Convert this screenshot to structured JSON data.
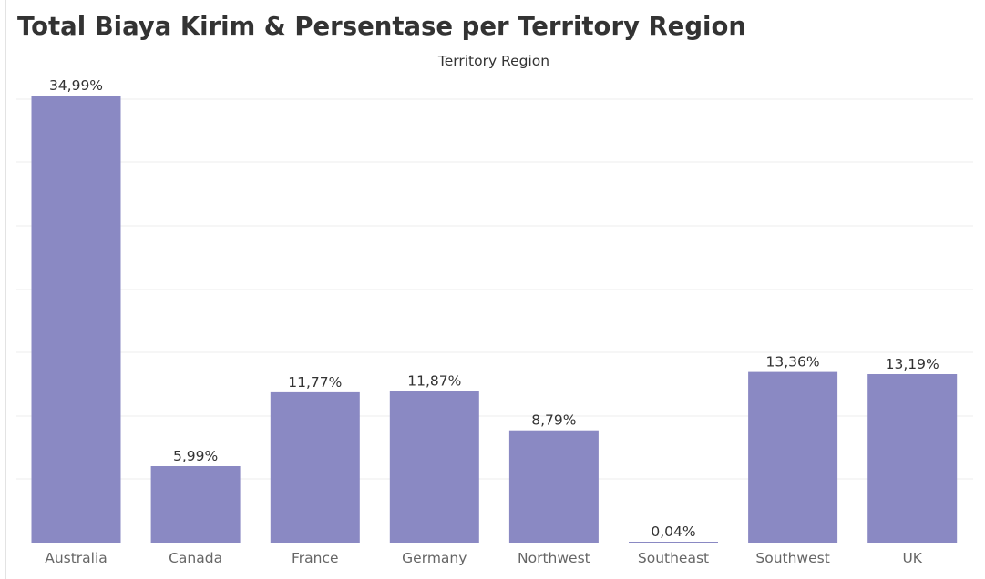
{
  "title": "Total Biaya Kirim & Persentase per Territory Region",
  "chart_data": {
    "type": "bar",
    "title": "Total Biaya Kirim & Persentase per Territory Region",
    "column_header": "Territory Region",
    "xlabel": "",
    "ylabel": "",
    "categories": [
      "Australia",
      "Canada",
      "France",
      "Germany",
      "Northwest",
      "Southeast",
      "Southwest",
      "UK"
    ],
    "values": [
      34.99,
      5.99,
      11.77,
      11.87,
      8.79,
      0.04,
      13.36,
      13.19
    ],
    "value_labels": [
      "34,99%",
      "5,99%",
      "11,77%",
      "11,87%",
      "8,79%",
      "0,04%",
      "13,36%",
      "13,19%"
    ],
    "ylim": [
      0,
      36.5
    ],
    "grid": true,
    "legend": "none",
    "colors": {
      "bar": "#8a89c3",
      "grid": "#eeeeee",
      "axis": "#cfcfcf",
      "text": "#333333",
      "tick_text": "#666666"
    }
  }
}
